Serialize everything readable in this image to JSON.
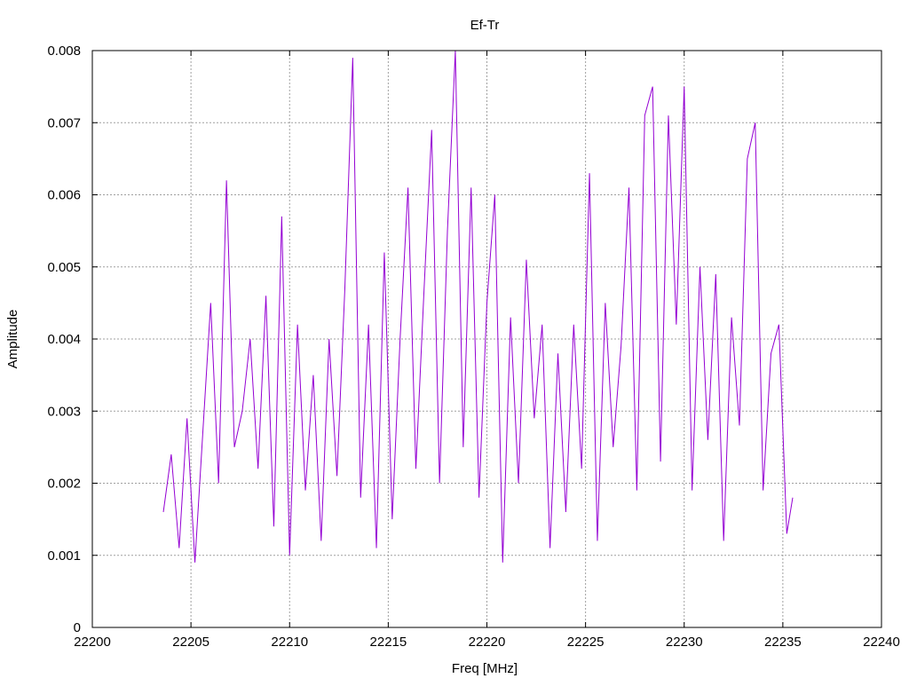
{
  "chart_data": {
    "type": "line",
    "title": "Ef-Tr",
    "xlabel": "Freq [MHz]",
    "ylabel": "Amplitude",
    "xlim": [
      22200,
      22240
    ],
    "ylim": [
      0,
      0.008
    ],
    "x_ticks": [
      22200,
      22205,
      22210,
      22215,
      22220,
      22225,
      22230,
      22235,
      22240
    ],
    "x_tick_labels": [
      "22200",
      "22205",
      "22210",
      "22215",
      "22220",
      "22225",
      "22230",
      "22235",
      "22240"
    ],
    "y_ticks": [
      0,
      0.001,
      0.002,
      0.003,
      0.004,
      0.005,
      0.006,
      0.007,
      0.008
    ],
    "y_tick_labels": [
      "0",
      "0.001",
      "0.002",
      "0.003",
      "0.004",
      "0.005",
      "0.006",
      "0.007",
      "0.008"
    ],
    "grid": true,
    "line_color": "#9400d3",
    "series": [
      {
        "x": [
          22203.6,
          22204.0,
          22204.4,
          22204.8,
          22205.2,
          22205.6,
          22206.0,
          22206.4,
          22206.8,
          22207.2,
          22207.6,
          22208.0,
          22208.4,
          22208.8,
          22209.2,
          22209.6,
          22210.0,
          22210.4,
          22210.8,
          22211.2,
          22211.6,
          22212.0,
          22212.4,
          22212.8,
          22213.2,
          22213.6,
          22214.0,
          22214.4,
          22214.8,
          22215.2,
          22215.6,
          22216.0,
          22216.4,
          22216.8,
          22217.2,
          22217.6,
          22218.0,
          22218.4,
          22218.8,
          22219.2,
          22219.6,
          22220.0,
          22220.4,
          22220.8,
          22221.2,
          22221.6,
          22222.0,
          22222.4,
          22222.8,
          22223.2,
          22223.6,
          22224.0,
          22224.4,
          22224.8,
          22225.2,
          22225.6,
          22226.0,
          22226.4,
          22226.8,
          22227.2,
          22227.6,
          22228.0,
          22228.4,
          22228.8,
          22229.2,
          22229.6,
          22230.0,
          22230.4,
          22230.8,
          22231.2,
          22231.6,
          22232.0,
          22232.4,
          22232.8,
          22233.2,
          22233.6,
          22234.0,
          22234.4,
          22234.8,
          22235.2,
          22235.5
        ],
        "y": [
          0.0016,
          0.0024,
          0.0011,
          0.0029,
          0.0009,
          0.0027,
          0.0045,
          0.002,
          0.0062,
          0.0025,
          0.003,
          0.004,
          0.0022,
          0.0046,
          0.0014,
          0.0057,
          0.001,
          0.0042,
          0.0019,
          0.0035,
          0.0012,
          0.004,
          0.0021,
          0.0047,
          0.0079,
          0.0018,
          0.0042,
          0.0011,
          0.0052,
          0.0015,
          0.004,
          0.0061,
          0.0022,
          0.0046,
          0.0069,
          0.002,
          0.0055,
          0.008,
          0.0025,
          0.0061,
          0.0018,
          0.0045,
          0.006,
          0.0009,
          0.0043,
          0.002,
          0.0051,
          0.0029,
          0.0042,
          0.0011,
          0.0038,
          0.0016,
          0.0042,
          0.0022,
          0.0063,
          0.0012,
          0.0045,
          0.0025,
          0.0039,
          0.0061,
          0.0019,
          0.0071,
          0.0075,
          0.0023,
          0.0071,
          0.0042,
          0.0075,
          0.0019,
          0.005,
          0.0026,
          0.0049,
          0.0012,
          0.0043,
          0.0028,
          0.0065,
          0.007,
          0.0019,
          0.0038,
          0.0042,
          0.0013,
          0.0018
        ]
      }
    ]
  }
}
